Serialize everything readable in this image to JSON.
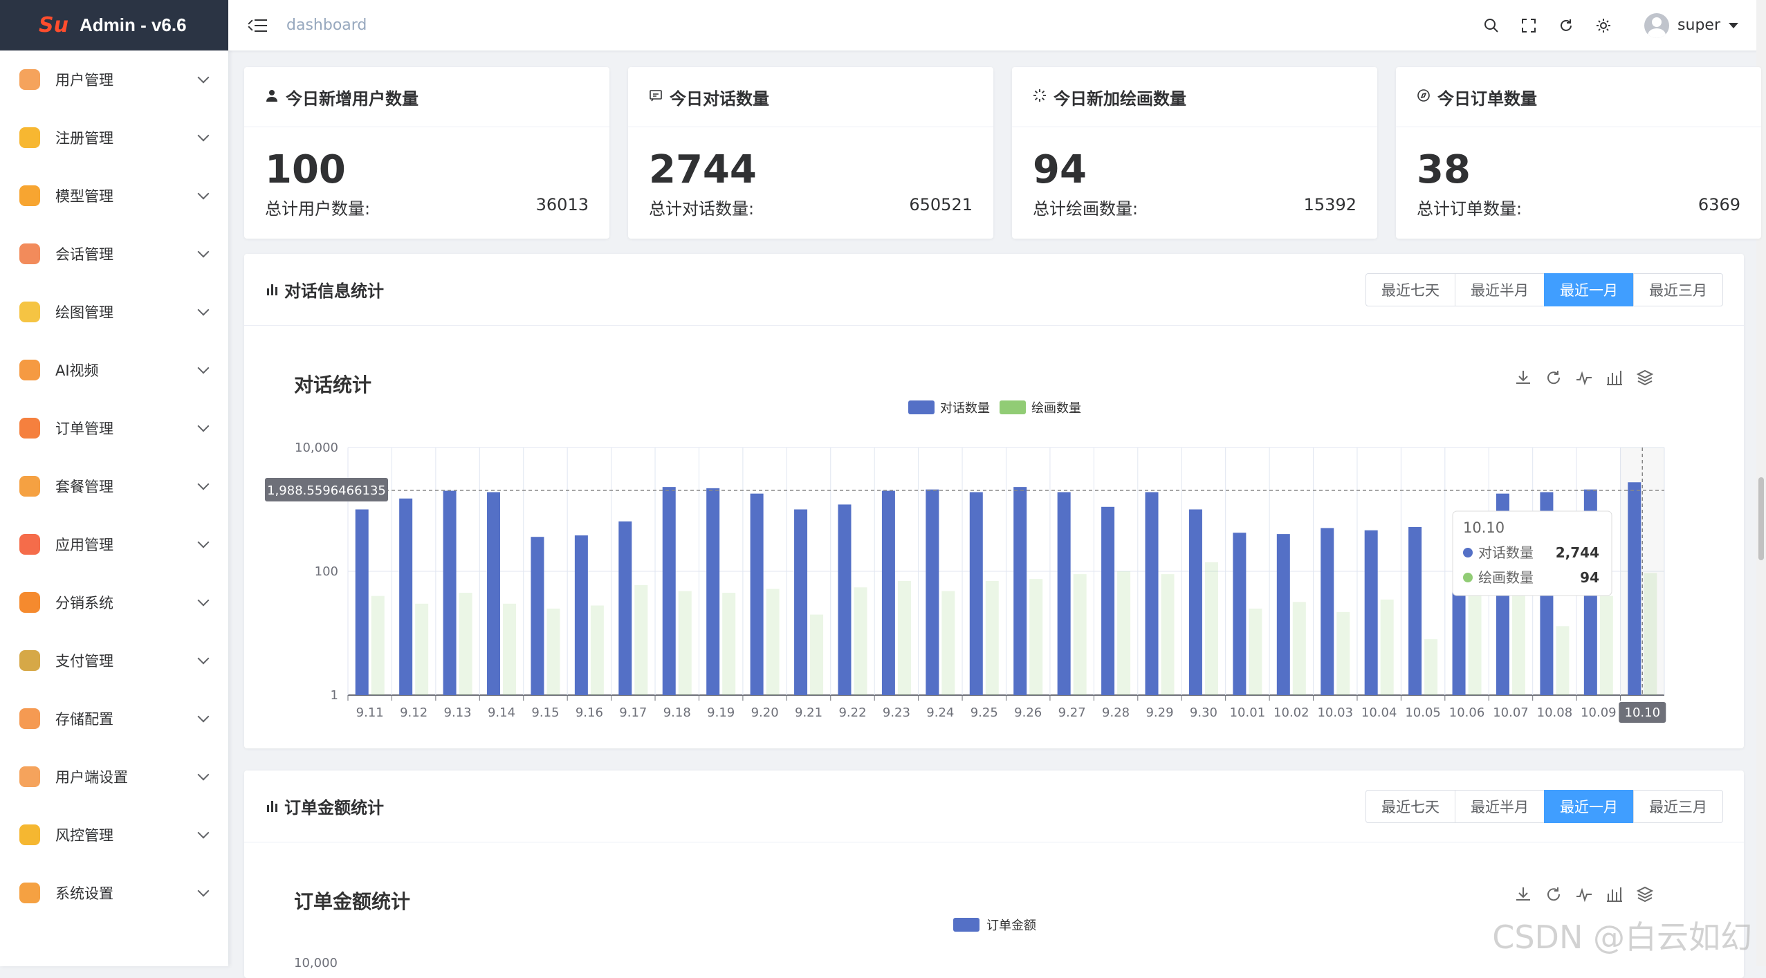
{
  "app": {
    "title": "Admin - v6.6",
    "logo_text": "Su"
  },
  "sidebar": {
    "items": [
      {
        "label": "用户管理",
        "icon": "user-manage-icon",
        "color": "#f5a35c"
      },
      {
        "label": "注册管理",
        "icon": "register-icon",
        "color": "#f7b731"
      },
      {
        "label": "模型管理",
        "icon": "model-icon",
        "color": "#f7a531"
      },
      {
        "label": "会话管理",
        "icon": "chat-icon",
        "color": "#f28b5b"
      },
      {
        "label": "绘图管理",
        "icon": "palette-icon",
        "color": "#f5c443"
      },
      {
        "label": "AI视频",
        "icon": "video-icon",
        "color": "#f59a42"
      },
      {
        "label": "订单管理",
        "icon": "order-icon",
        "color": "#f5803e"
      },
      {
        "label": "套餐管理",
        "icon": "package-icon",
        "color": "#f5a142"
      },
      {
        "label": "应用管理",
        "icon": "apps-icon",
        "color": "#f56c4a"
      },
      {
        "label": "分销系统",
        "icon": "send-icon",
        "color": "#f58a2e"
      },
      {
        "label": "支付管理",
        "icon": "payment-icon",
        "color": "#d6a847"
      },
      {
        "label": "存储配置",
        "icon": "storage-icon",
        "color": "#f59a52"
      },
      {
        "label": "用户端设置",
        "icon": "client-settings-icon",
        "color": "#f5a35c"
      },
      {
        "label": "风控管理",
        "icon": "shield-icon",
        "color": "#f5b731"
      },
      {
        "label": "系统设置",
        "icon": "gear-icon",
        "color": "#f5a142"
      }
    ]
  },
  "header": {
    "breadcrumb": "dashboard",
    "username": "super"
  },
  "stats": [
    {
      "title": "今日新增用户数量",
      "icon": "user-icon",
      "value": "100",
      "sub_label": "总计用户数量:",
      "sub_value": "36013"
    },
    {
      "title": "今日对话数量",
      "icon": "message-icon",
      "value": "2744",
      "sub_label": "总计对话数量:",
      "sub_value": "650521"
    },
    {
      "title": "今日新加绘画数量",
      "icon": "loading-icon",
      "value": "94",
      "sub_label": "总计绘画数量:",
      "sub_value": "15392"
    },
    {
      "title": "今日订单数量",
      "icon": "compass-icon",
      "value": "38",
      "sub_label": "总计订单数量:",
      "sub_value": "6369"
    }
  ],
  "range_buttons": [
    "最近七天",
    "最近半月",
    "最近一月",
    "最近三月"
  ],
  "range_selected": 2,
  "panel1": {
    "title": "对话信息统计",
    "chart_title": "对话统计"
  },
  "panel2": {
    "title": "订单金额统计",
    "chart_title": "订单金额统计",
    "legend": "订单金额",
    "y_top_label": "10,000"
  },
  "tooltip": {
    "title": "10.10",
    "rows": [
      {
        "name": "对话数量",
        "value": "2,744"
      },
      {
        "name": "绘画数量",
        "value": "94"
      }
    ]
  },
  "axis_pointer_label": "1,988.5596466135",
  "watermark": "CSDN @白云如幻",
  "chart_data": {
    "type": "bar",
    "title": "对话统计",
    "y_scale": "log",
    "ylim": [
      1,
      10000
    ],
    "y_ticks": [
      "10,000",
      "100",
      "1"
    ],
    "categories": [
      "9.11",
      "9.12",
      "9.13",
      "9.14",
      "9.15",
      "9.16",
      "9.17",
      "9.18",
      "9.19",
      "9.20",
      "9.21",
      "9.22",
      "9.23",
      "9.24",
      "9.25",
      "9.26",
      "9.27",
      "9.28",
      "9.29",
      "9.30",
      "10.01",
      "10.02",
      "10.03",
      "10.04",
      "10.05",
      "10.06",
      "10.07",
      "10.08",
      "10.09",
      "10.10"
    ],
    "series": [
      {
        "name": "对话数量",
        "color": "#5470c6",
        "values": [
          1000,
          1500,
          2000,
          1900,
          360,
          380,
          640,
          2300,
          2200,
          1800,
          1000,
          1200,
          2000,
          2100,
          1900,
          2300,
          1900,
          1100,
          1900,
          1000,
          420,
          400,
          500,
          460,
          520,
          700,
          1800,
          1900,
          2100,
          2744
        ]
      },
      {
        "name": "绘画数量",
        "color": "#91cc75",
        "values": [
          40,
          30,
          45,
          30,
          25,
          28,
          60,
          48,
          45,
          52,
          20,
          55,
          70,
          48,
          70,
          75,
          90,
          100,
          90,
          140,
          25,
          32,
          22,
          35,
          8,
          40,
          55,
          13,
          40,
          94
        ]
      }
    ],
    "legend": "top-center",
    "grid": true
  }
}
